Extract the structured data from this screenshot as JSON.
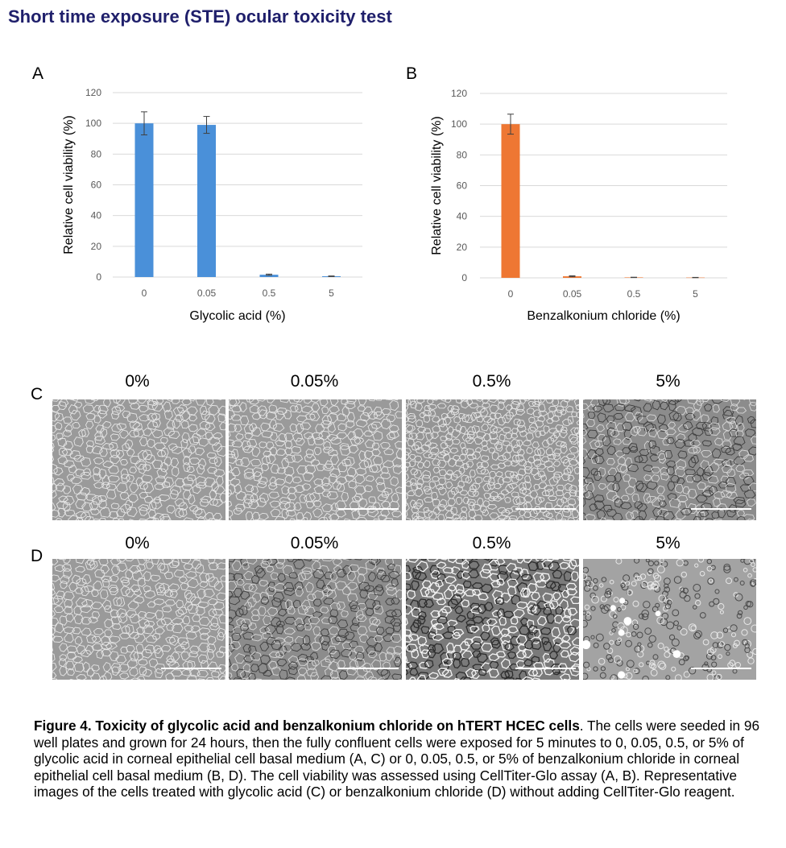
{
  "page_title": "Short time exposure (STE) ocular toxicity test",
  "panels": {
    "a": "A",
    "b": "B",
    "c": "C",
    "d": "D"
  },
  "chart_data": [
    {
      "type": "bar",
      "panel": "A",
      "categories": [
        "0",
        "0.05",
        "0.5",
        "5"
      ],
      "values": [
        100,
        99,
        1.5,
        0.5
      ],
      "errors": [
        7.5,
        5.5,
        0.4,
        0.2
      ],
      "color": "#4a90d9",
      "xlabel": "Glycolic acid (%)",
      "ylabel": "Relative cell viability (%)",
      "ylim": [
        0,
        120
      ],
      "yticks": [
        "0",
        "20",
        "40",
        "60",
        "80",
        "100",
        "120"
      ],
      "grid": true
    },
    {
      "type": "bar",
      "panel": "B",
      "categories": [
        "0",
        "0.05",
        "0.5",
        "5"
      ],
      "values": [
        100,
        1.0,
        0.3,
        0.2
      ],
      "errors": [
        6.5,
        0.3,
        0.1,
        0.1
      ],
      "color": "#ee7733",
      "xlabel": "Benzalkonium chloride (%)",
      "ylabel": "Relative cell viability (%)",
      "ylim": [
        0,
        120
      ],
      "yticks": [
        "0",
        "20",
        "40",
        "60",
        "80",
        "100",
        "120"
      ],
      "grid": true
    }
  ],
  "micrographs": {
    "c_label": "C",
    "d_label": "D",
    "c_titles": [
      "0%",
      "0.05%",
      "0.5%",
      "5%"
    ],
    "d_titles": [
      "0%",
      "0.05%",
      "0.5%",
      "5%"
    ],
    "c_descriptions": [
      "confluent-cells",
      "confluent-cells",
      "confluent-cells",
      "damaged-cells"
    ],
    "d_descriptions": [
      "confluent-cells",
      "damaged-cells",
      "damaged-cells",
      "rounded-cells"
    ]
  },
  "caption": {
    "bold": "Figure 4. Toxicity of glycolic acid and benzalkonium chloride on hTERT HCEC cells",
    "text": ".  The cells were seeded in 96 well plates and grown for 24 hours, then the fully confluent cells were exposed for 5 minutes to 0, 0.05,  0.5, or 5% of glycolic acid in corneal epithelial cell basal medium (A, C)  or 0, 0.05, 0.5, or 5% of benzalkonium chloride in corneal epithelial cell basal medium (B, D). The cell viability was assessed using CellTiter-Glo assay (A, B). Representative images of the cells treated with glycolic acid (C) or benzalkonium chloride (D) without adding CellTiter-Glo reagent."
  }
}
